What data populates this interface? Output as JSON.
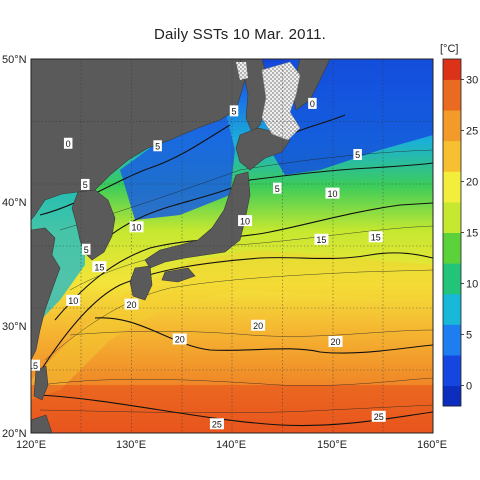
{
  "title": "Daily SSTs 10 Mar. 2011.",
  "map": {
    "lon_range": [
      120,
      160
    ],
    "lat_range": [
      20,
      50
    ],
    "lon_ticks": [
      "120°E",
      "130°E",
      "140°E",
      "150°E",
      "160°E"
    ],
    "lat_ticks": [
      "50°N",
      "40°N",
      "30°N",
      "20°N"
    ],
    "grid": true,
    "land_color": "#5a5a5a",
    "ice_pattern": "dotted-white",
    "isotherm_labels": [
      {
        "text": "0",
        "lon": 123.7,
        "lat": 43.2
      },
      {
        "text": "0",
        "lon": 148.0,
        "lat": 46.4
      },
      {
        "text": "5",
        "lon": 140.2,
        "lat": 45.8
      },
      {
        "text": "5",
        "lon": 125.4,
        "lat": 39.9
      },
      {
        "text": "5",
        "lon": 144.5,
        "lat": 39.6
      },
      {
        "text": "5",
        "lon": 132.6,
        "lat": 43.0
      },
      {
        "text": "5",
        "lon": 152.5,
        "lat": 42.3
      },
      {
        "text": "5",
        "lon": 125.5,
        "lat": 34.7
      },
      {
        "text": "10",
        "lon": 130.5,
        "lat": 36.5
      },
      {
        "text": "10",
        "lon": 141.3,
        "lat": 37.0
      },
      {
        "text": "10",
        "lon": 150.0,
        "lat": 39.2
      },
      {
        "text": "10",
        "lon": 124.2,
        "lat": 30.6
      },
      {
        "text": "15",
        "lon": 126.8,
        "lat": 33.3
      },
      {
        "text": "15",
        "lon": 148.9,
        "lat": 35.5
      },
      {
        "text": "15",
        "lon": 154.3,
        "lat": 35.7
      },
      {
        "text": "15",
        "lon": 120.2,
        "lat": 25.4
      },
      {
        "text": "20",
        "lon": 130.0,
        "lat": 30.3
      },
      {
        "text": "20",
        "lon": 134.8,
        "lat": 27.5
      },
      {
        "text": "20",
        "lon": 142.6,
        "lat": 28.6
      },
      {
        "text": "20",
        "lon": 150.3,
        "lat": 27.3
      },
      {
        "text": "25",
        "lon": 138.5,
        "lat": 20.7
      },
      {
        "text": "25",
        "lon": 154.6,
        "lat": 21.3
      }
    ]
  },
  "colorbar": {
    "unit": "[°C]",
    "ticks": [
      "30",
      "25",
      "20",
      "15",
      "10",
      "5",
      "0"
    ],
    "range": [
      -2,
      32
    ],
    "stops": [
      {
        "value": -2,
        "color": "#0d2dbf"
      },
      {
        "value": 0,
        "color": "#1646e0"
      },
      {
        "value": 3,
        "color": "#1e7ef0"
      },
      {
        "value": 6,
        "color": "#19b8d8"
      },
      {
        "value": 9,
        "color": "#22c47a"
      },
      {
        "value": 12,
        "color": "#5cd23a"
      },
      {
        "value": 15,
        "color": "#c6e830"
      },
      {
        "value": 18,
        "color": "#f3ee3c"
      },
      {
        "value": 21,
        "color": "#f6c030"
      },
      {
        "value": 24,
        "color": "#f29a2a"
      },
      {
        "value": 27,
        "color": "#ea6a22"
      },
      {
        "value": 30,
        "color": "#dc3218"
      },
      {
        "value": 32,
        "color": "#b81410"
      }
    ]
  }
}
